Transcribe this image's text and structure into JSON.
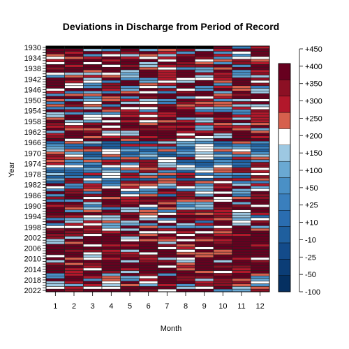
{
  "chart_data": {
    "type": "heatmap",
    "title": "Deviations in Discharge from Period of Record",
    "xlabel": "Month",
    "ylabel": "Year",
    "x_categories": [
      "1",
      "2",
      "3",
      "4",
      "5",
      "6",
      "7",
      "8",
      "9",
      "10",
      "11",
      "12"
    ],
    "year_range": [
      1930,
      2022
    ],
    "y_tick_labels": [
      "1930",
      "1934",
      "1938",
      "1942",
      "1946",
      "1950",
      "1954",
      "1958",
      "1962",
      "1966",
      "1970",
      "1974",
      "1978",
      "1982",
      "1986",
      "1990",
      "1994",
      "1998",
      "2002",
      "2006",
      "2010",
      "2014",
      "2018",
      "2022"
    ],
    "legend": {
      "placement": "right",
      "labels": [
        "+450",
        "+400",
        "+350",
        "+300",
        "+250",
        "+200",
        "+150",
        "+100",
        "+50",
        "+25",
        "+10",
        "-10",
        "-25",
        "-50",
        "-100"
      ],
      "colors": [
        "#053061",
        "#0b3d76",
        "#134b8a",
        "#1f5f9e",
        "#2a6db0",
        "#3a7fbd",
        "#4a90c6",
        "#6aa9d3",
        "#9dc8e2",
        "#ffffff",
        "#d6604d",
        "#b2182b",
        "#8c1024",
        "#67001f"
      ]
    },
    "missing_color": "#000000"
  }
}
